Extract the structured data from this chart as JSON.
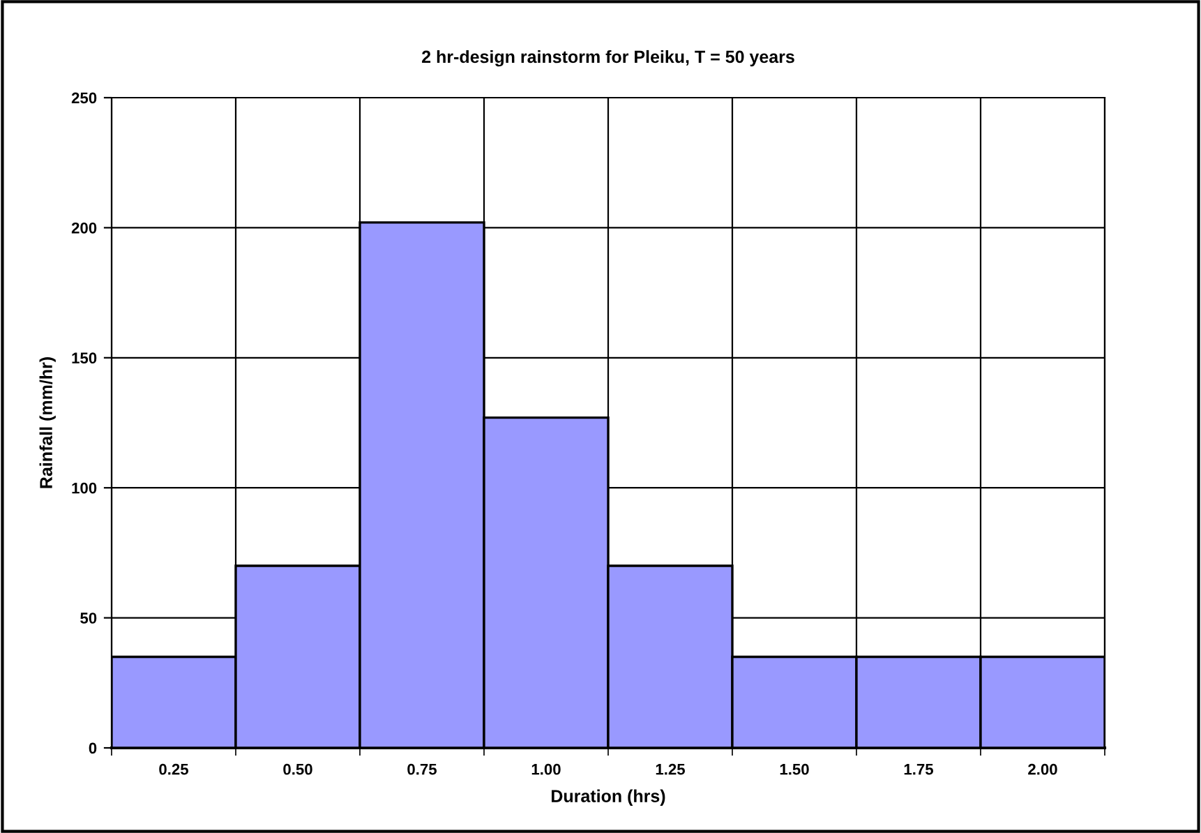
{
  "chart_data": {
    "type": "bar",
    "title": "2 hr-design rainstorm for Pleiku, T = 50 years",
    "xlabel": "Duration (hrs)",
    "ylabel": "Rainfall (mm/hr)",
    "categories": [
      "0.25",
      "0.50",
      "0.75",
      "1.00",
      "1.25",
      "1.50",
      "1.75",
      "2.00"
    ],
    "values": [
      35,
      70,
      202,
      127,
      70,
      35,
      35,
      35
    ],
    "color": "#9999ff",
    "ylim": [
      0,
      250
    ],
    "yticks": [
      0,
      50,
      100,
      150,
      200,
      250
    ],
    "grid": true,
    "legend": false
  }
}
